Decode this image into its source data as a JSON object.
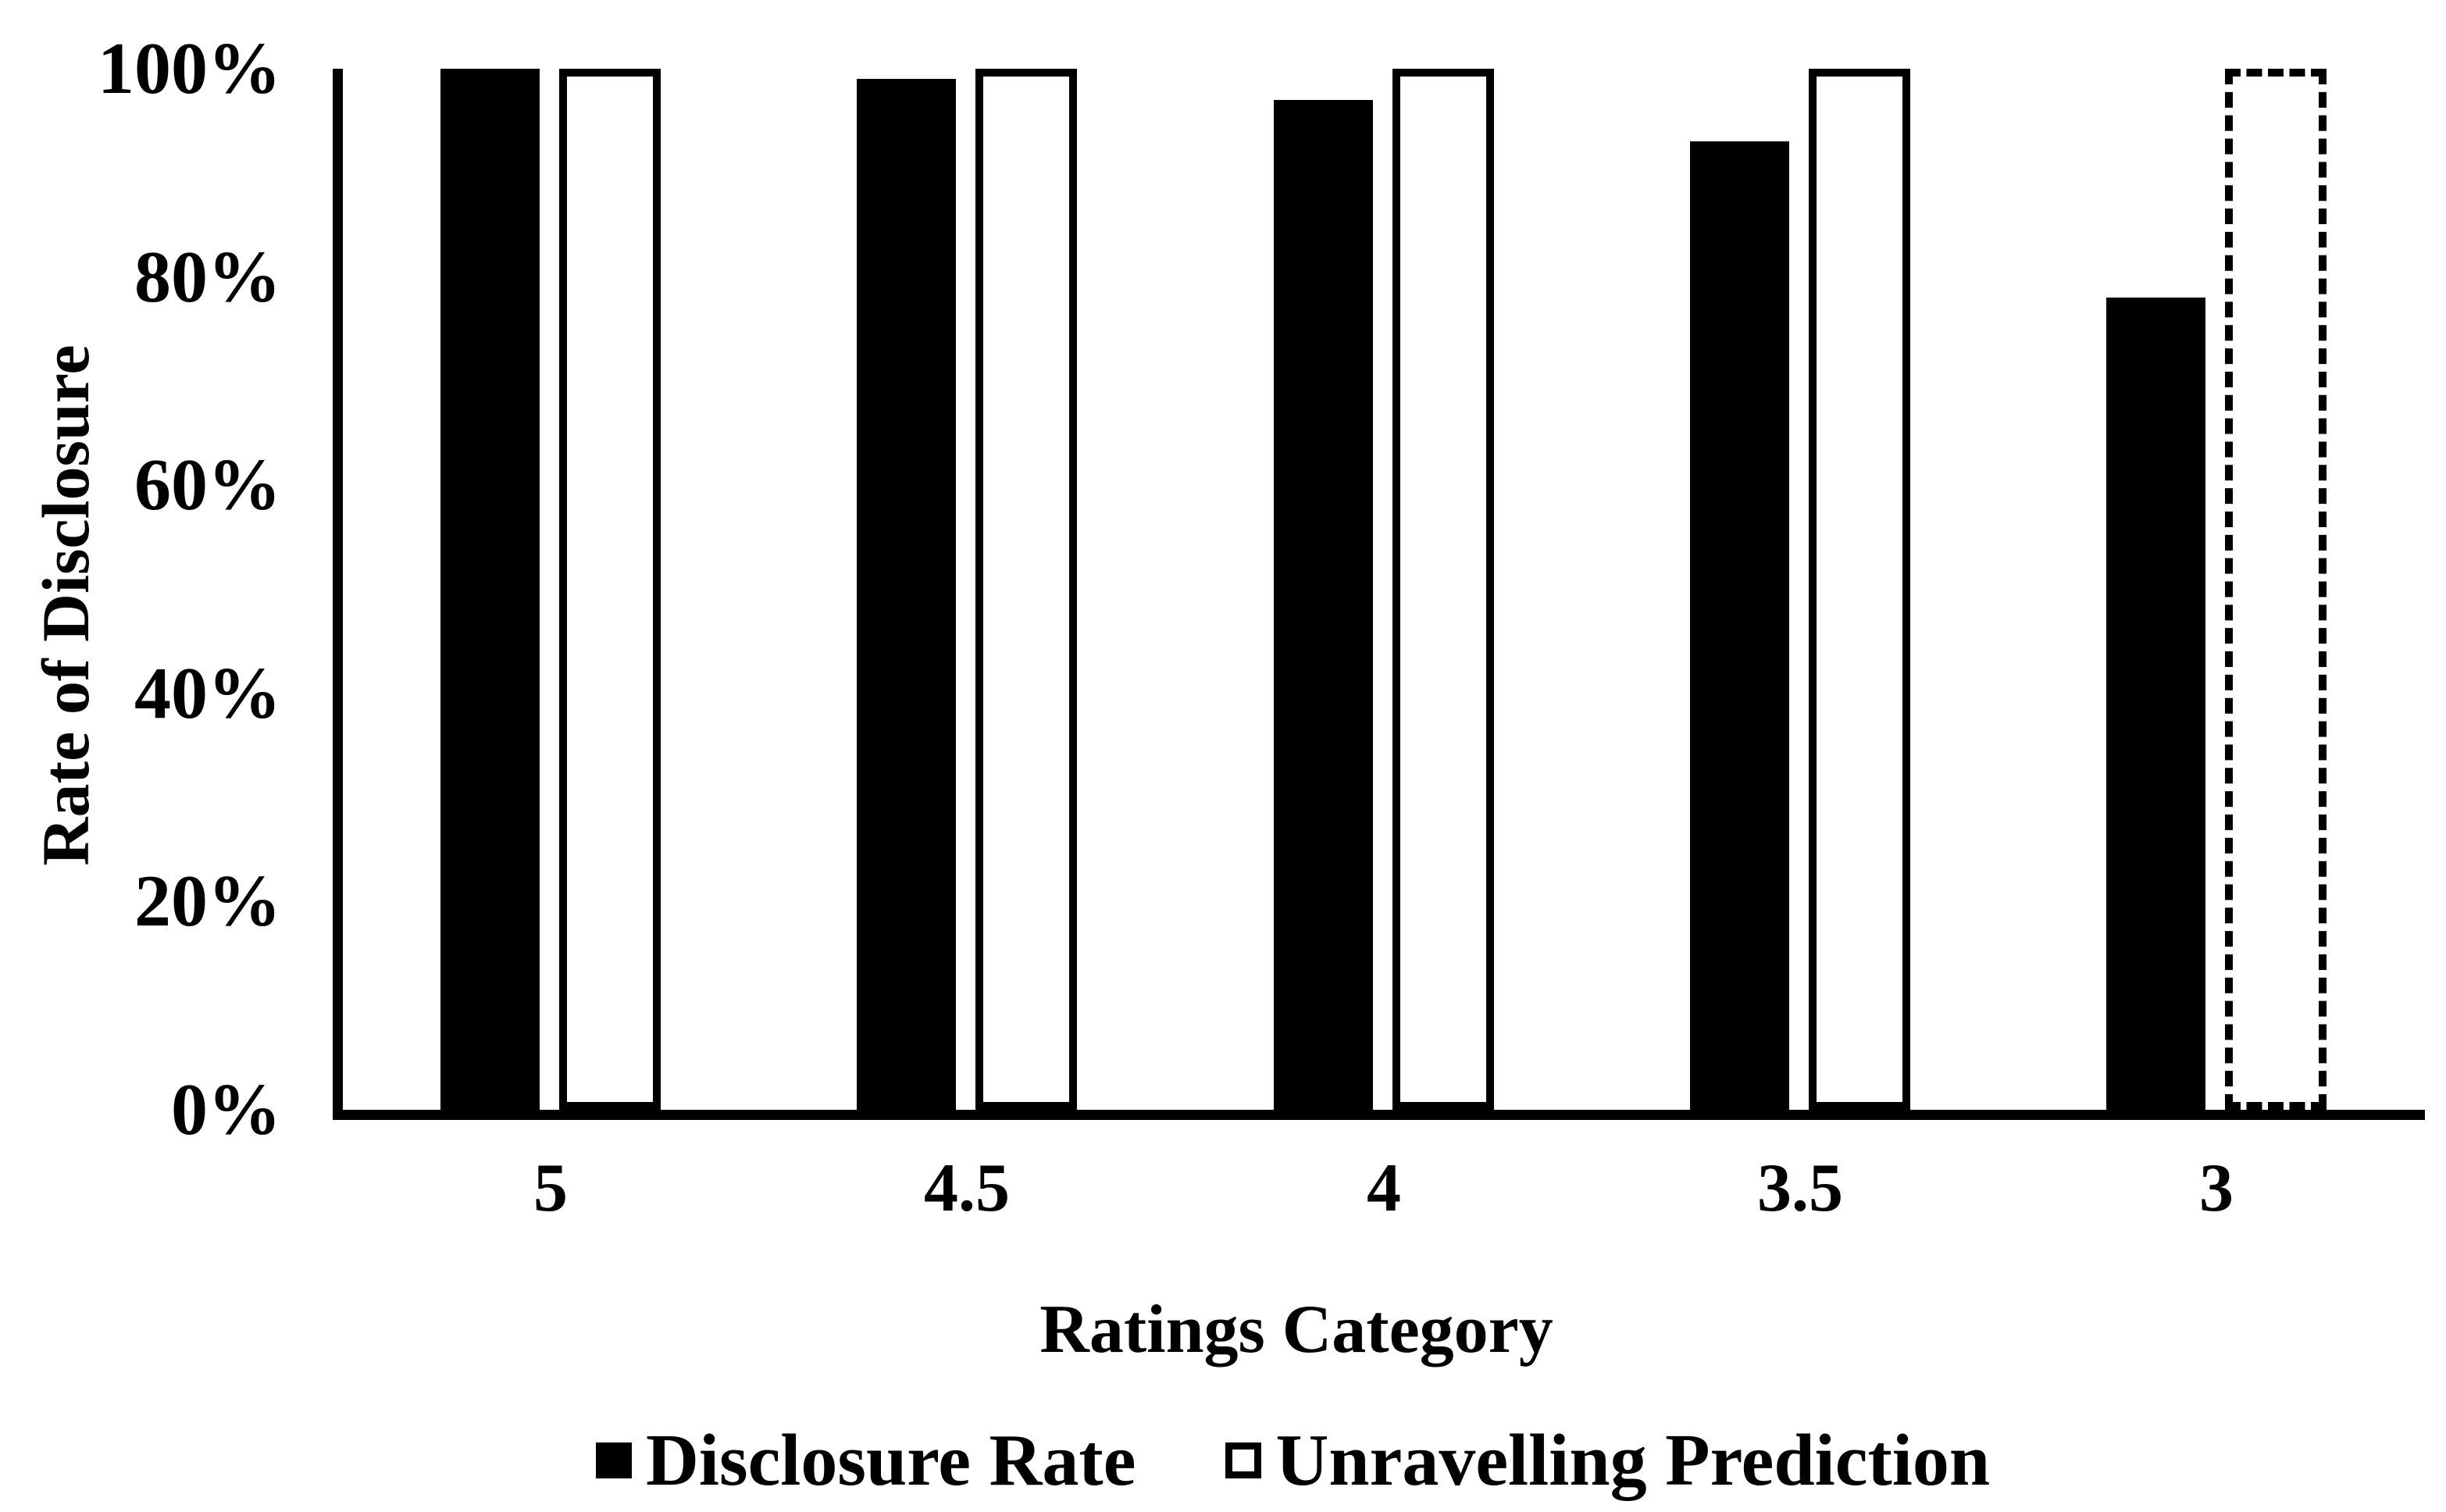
{
  "chart_data": {
    "type": "bar",
    "title": "",
    "categories": [
      "5",
      "4.5",
      "4",
      "3.5",
      "3"
    ],
    "series": [
      {
        "name": "Disclosure Rate",
        "marker": "filled-square",
        "values_pct": [
          100,
          99,
          97,
          93,
          78
        ]
      },
      {
        "name": "Unravelling Prediction",
        "marker": "outlined-square",
        "values_pct": [
          100,
          100,
          100,
          100,
          100
        ],
        "dashed_outline_categories": [
          "3"
        ]
      }
    ],
    "xlabel": "Ratings Category",
    "ylabel": "Rate of Disclosure",
    "y_tick_labels": [
      "100%",
      "80%",
      "60%",
      "40%",
      "20%",
      "0%"
    ],
    "ylim_pct": [
      0,
      100
    ],
    "grid": "off",
    "legend_position": "bottom",
    "colors": {
      "bar_fill": "#000000",
      "bar_outline": "#000000",
      "outline_bar_fill": "#ffffff",
      "background": "#ffffff",
      "text": "#000000"
    }
  }
}
